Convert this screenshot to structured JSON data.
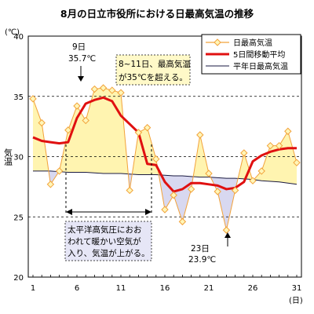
{
  "chart_data": {
    "type": "line",
    "title": "8月の日立市役所における日最高気温の推移",
    "ylabel": "気温",
    "yunit": "(℃)",
    "xunit": "(日)",
    "xlim": [
      1,
      31
    ],
    "ylim": [
      20,
      40
    ],
    "x_ticks": [
      1,
      6,
      11,
      16,
      21,
      26,
      31
    ],
    "y_ticks": [
      20,
      25,
      30,
      35,
      40
    ],
    "grid": "dashed horizontal at 25, 30, 35",
    "legend_position": "top-right",
    "x": [
      1,
      2,
      3,
      4,
      5,
      6,
      7,
      8,
      9,
      10,
      11,
      12,
      13,
      14,
      15,
      16,
      17,
      18,
      19,
      20,
      21,
      22,
      23,
      24,
      25,
      26,
      27,
      28,
      29,
      30,
      31
    ],
    "series": [
      {
        "name": "日最高気温",
        "color": "#F2A23A",
        "marker_fill": "#FFF6B8",
        "values": [
          34.8,
          32.8,
          27.7,
          28.8,
          32.2,
          34.2,
          33.0,
          35.6,
          35.7,
          35.5,
          35.3,
          27.2,
          32.0,
          32.4,
          29.8,
          25.6,
          26.8,
          24.6,
          27.3,
          31.8,
          28.6,
          27.1,
          23.9,
          27.2,
          30.3,
          28.0,
          28.8,
          30.9,
          30.9,
          32.1,
          29.5
        ]
      },
      {
        "name": "5日間移動平均",
        "color": "#E01010",
        "values": [
          31.6,
          31.3,
          31.2,
          31.1,
          31.2,
          33.2,
          34.4,
          34.7,
          34.9,
          34.6,
          33.4,
          32.7,
          32.0,
          29.4,
          29.3,
          27.9,
          27.1,
          27.3,
          27.8,
          27.8,
          27.7,
          27.6,
          27.3,
          27.4,
          27.9,
          29.6,
          30.1,
          30.4,
          30.6,
          30.7,
          30.7
        ]
      },
      {
        "name": "平年日最高気温",
        "color": "#1A1A40",
        "values": [
          28.8,
          28.8,
          28.8,
          28.75,
          28.7,
          28.7,
          28.7,
          28.65,
          28.6,
          28.6,
          28.6,
          28.55,
          28.5,
          28.5,
          28.5,
          28.45,
          28.4,
          28.4,
          28.35,
          28.3,
          28.3,
          28.25,
          28.2,
          28.2,
          28.15,
          28.1,
          28.0,
          27.95,
          27.9,
          27.8,
          27.7
        ]
      }
    ],
    "fill_above_color": "#FFF4B0",
    "fill_below_color": "#D8D8F0",
    "annotations": {
      "peak_day": "9日",
      "peak_temp": "35.7℃",
      "range_note": [
        "8~11日、最高気温",
        "が35℃を超える。"
      ],
      "cause_note": [
        "太平洋高気圧におお",
        "われて暖かい空気が",
        "入り、気温が上がる。"
      ],
      "low_day": "23日",
      "low_temp": "23.9℃"
    }
  }
}
